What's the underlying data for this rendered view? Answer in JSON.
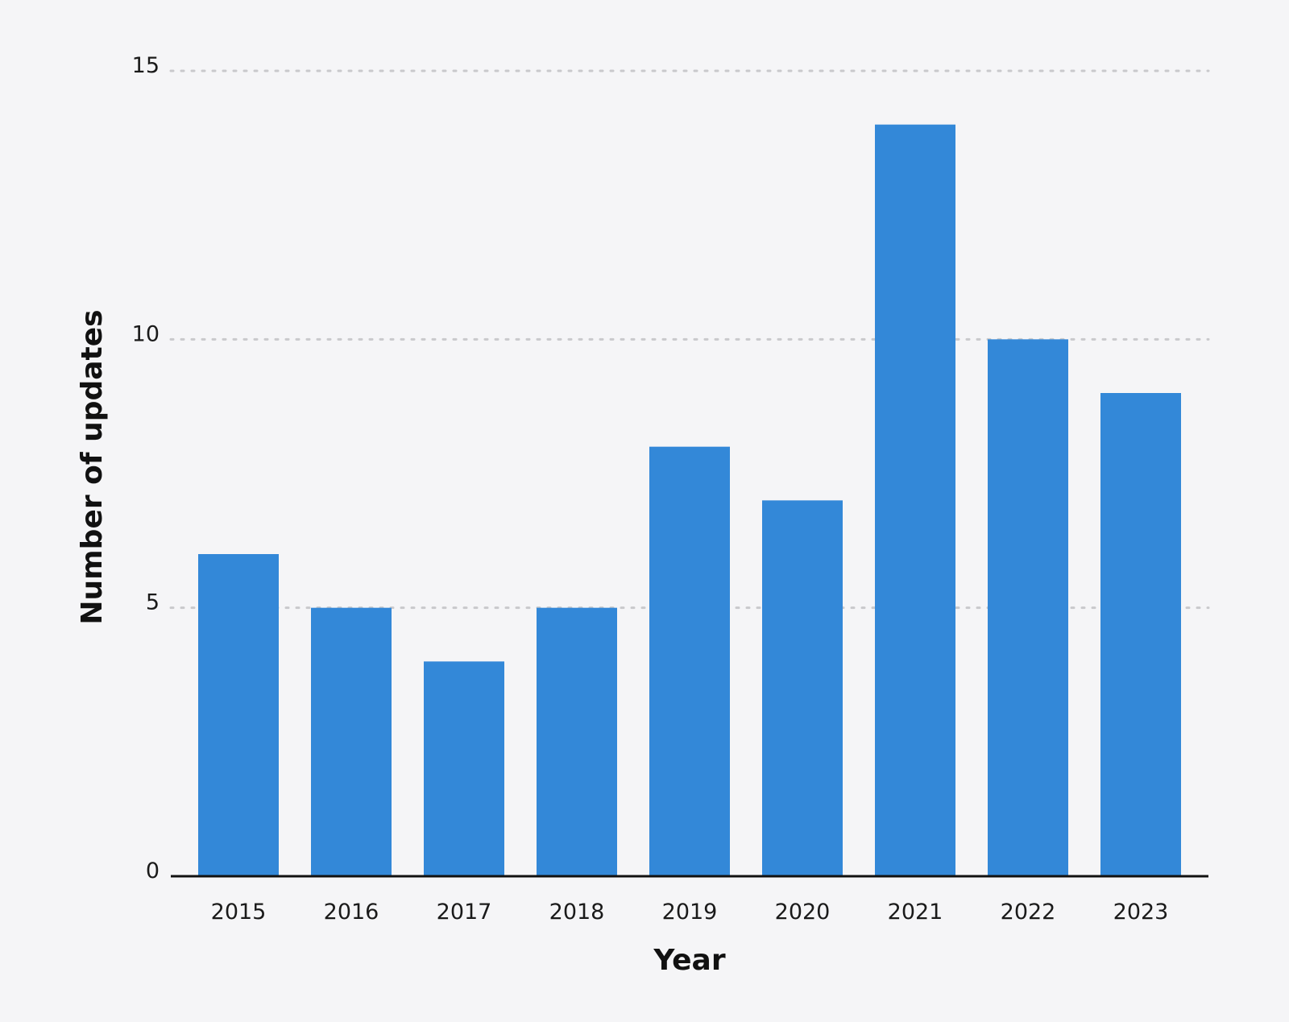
{
  "chart_data": {
    "type": "bar",
    "categories": [
      "2015",
      "2016",
      "2017",
      "2018",
      "2019",
      "2020",
      "2021",
      "2022",
      "2023"
    ],
    "values": [
      6,
      5,
      4,
      5,
      8,
      7,
      14,
      10,
      9
    ],
    "title": "",
    "xlabel": "Year",
    "ylabel": "Number of updates",
    "ylim": [
      0,
      15
    ],
    "yticks": [
      "0",
      "5",
      "10",
      "15"
    ],
    "grid": true,
    "bar_color": "#3388d8"
  }
}
